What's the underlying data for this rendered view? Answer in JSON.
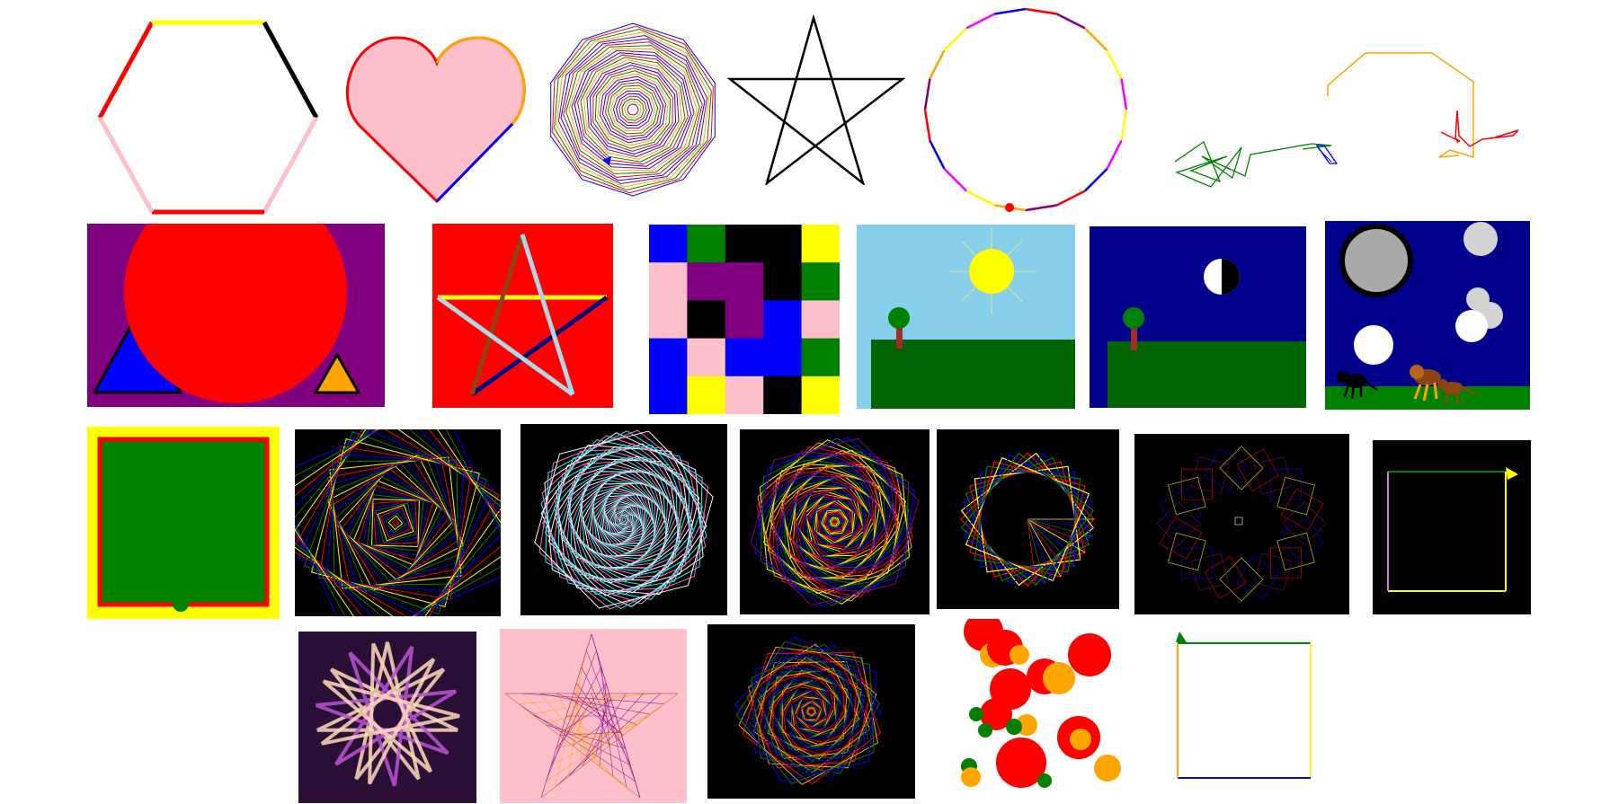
{
  "page": {
    "background": "#ffffff"
  },
  "rows": [
    {
      "name": "row-1-outline-drawings",
      "items": [
        {
          "name": "hexagon-drawing",
          "colors": [
            "#ff0000",
            "#ffff00",
            "#000000",
            "#ffc0cb"
          ]
        },
        {
          "name": "heart-drawing",
          "colors": [
            "#ffc0cb",
            "#ff0000",
            "#ffa500",
            "#0000ff"
          ]
        },
        {
          "name": "nested-decagon-spiral-drawing",
          "colors": [
            "#0000ff",
            "#ff0000",
            "#008000",
            "#ffa500",
            "#800080"
          ]
        },
        {
          "name": "star-outline-drawing",
          "colors": [
            "#000000"
          ]
        },
        {
          "name": "multicolor-circle-drawing",
          "colors": [
            "#ffff00",
            "#ff00ff",
            "#0000ff",
            "#ff0000",
            "#800080",
            "#ffa500"
          ]
        },
        {
          "name": "random-green-walk-drawing",
          "colors": [
            "#008000",
            "#0000ff"
          ]
        },
        {
          "name": "orange-red-path-drawing",
          "colors": [
            "#ffa500",
            "#ff0000"
          ]
        }
      ]
    },
    {
      "name": "row-2-filled-scenes",
      "items": [
        {
          "name": "red-circle-triangles-scene",
          "colors": [
            "#800080",
            "#ff0000",
            "#0000ff",
            "#ffa500"
          ]
        },
        {
          "name": "red-star-scene",
          "colors": [
            "#ff0000",
            "#add8e6",
            "#ffff00",
            "#000080"
          ]
        },
        {
          "name": "color-grid-scene",
          "colors": [
            "#0000ff",
            "#008000",
            "#000000",
            "#ffff00",
            "#ffc0cb",
            "#800080"
          ]
        },
        {
          "name": "sun-tree-day-scene",
          "colors": [
            "#87ceeb",
            "#ffff00",
            "#006400",
            "#a52a2a"
          ]
        },
        {
          "name": "moon-tree-night-scene",
          "colors": [
            "#00008b",
            "#006400",
            "#ffffff",
            "#000000"
          ]
        },
        {
          "name": "full-moon-animals-scene",
          "colors": [
            "#00008b",
            "#a9a9a9",
            "#ffffff",
            "#8b4513"
          ]
        }
      ]
    },
    {
      "name": "row-3-spirals",
      "items": [
        {
          "name": "green-square-yellow-frame",
          "colors": [
            "#ffff00",
            "#ff0000",
            "#008000"
          ]
        },
        {
          "name": "rotating-squares-spiral",
          "colors": [
            "#ff0000",
            "#ffff00",
            "#008000",
            "#0000ff"
          ]
        },
        {
          "name": "cyan-pink-swirl",
          "colors": [
            "#00ffff",
            "#ff69b4",
            "#ffffff"
          ]
        },
        {
          "name": "rainbow-swirl",
          "colors": [
            "#ff0000",
            "#ffa500",
            "#ffff00",
            "#008000",
            "#0000ff",
            "#800080"
          ]
        },
        {
          "name": "rotating-squares-rosette",
          "colors": [
            "#ff0000",
            "#ffff00",
            "#0000ff",
            "#008000"
          ]
        },
        {
          "name": "dim-squares-ring",
          "colors": [
            "#800080",
            "#0000ff",
            "#ffff00",
            "#ff0000"
          ]
        },
        {
          "name": "black-square-frame",
          "colors": [
            "#000000",
            "#008000",
            "#ffff00",
            "#da70d6"
          ]
        }
      ]
    },
    {
      "name": "row-4-mixed",
      "items": [
        {
          "name": "purple-star-scene",
          "colors": [
            "#2a1036",
            "#ffdab9",
            "#ba55d3"
          ]
        },
        {
          "name": "pink-string-star",
          "colors": [
            "#ffc0cb",
            "#800080",
            "#ffa500"
          ]
        },
        {
          "name": "rainbow-deep-swirl",
          "colors": [
            "#000000",
            "#ff0000",
            "#ffa500",
            "#008000",
            "#0000ff"
          ]
        },
        {
          "name": "dots-scatter",
          "colors": [
            "#ff0000",
            "#ffa500",
            "#008000"
          ]
        },
        {
          "name": "white-square-outline",
          "colors": [
            "#ffffff",
            "#008000",
            "#ffa500",
            "#ffff00",
            "#0000ff"
          ]
        }
      ]
    }
  ]
}
